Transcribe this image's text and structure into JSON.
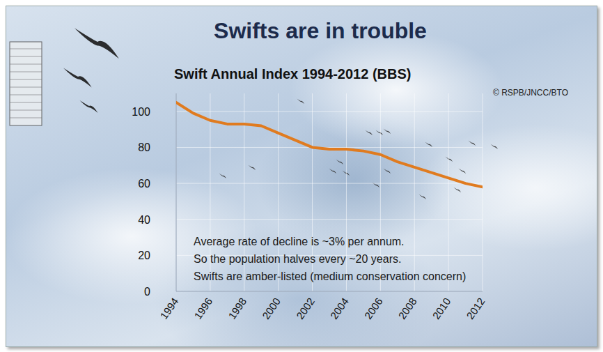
{
  "chart_data": {
    "type": "line",
    "title": "Swifts are in trouble",
    "subtitle": "Swift Annual Index 1994-2012 (BBS)",
    "source": "© RSPB/JNCC/BTO",
    "annotations": [
      "Average rate of decline is ~3% per annum.",
      "So the population halves every ~20 years.",
      "Swifts are amber-listed (medium conservation concern)"
    ],
    "x": [
      1994,
      1995,
      1996,
      1997,
      1998,
      1999,
      2000,
      2001,
      2002,
      2003,
      2004,
      2005,
      2006,
      2007,
      2008,
      2009,
      2010,
      2011,
      2012
    ],
    "values": [
      105,
      99,
      95,
      93,
      93,
      92,
      88,
      84,
      80,
      79,
      79,
      78,
      76,
      72,
      69,
      66,
      63,
      60,
      58
    ],
    "color": "#e07b1f",
    "xlim": [
      1994,
      2012
    ],
    "ylim": [
      0,
      110
    ],
    "xticks": [
      1994,
      1996,
      1998,
      2000,
      2002,
      2004,
      2006,
      2008,
      2010,
      2012
    ],
    "yticks": [
      0,
      20,
      40,
      60,
      80,
      100
    ],
    "grid": true
  }
}
